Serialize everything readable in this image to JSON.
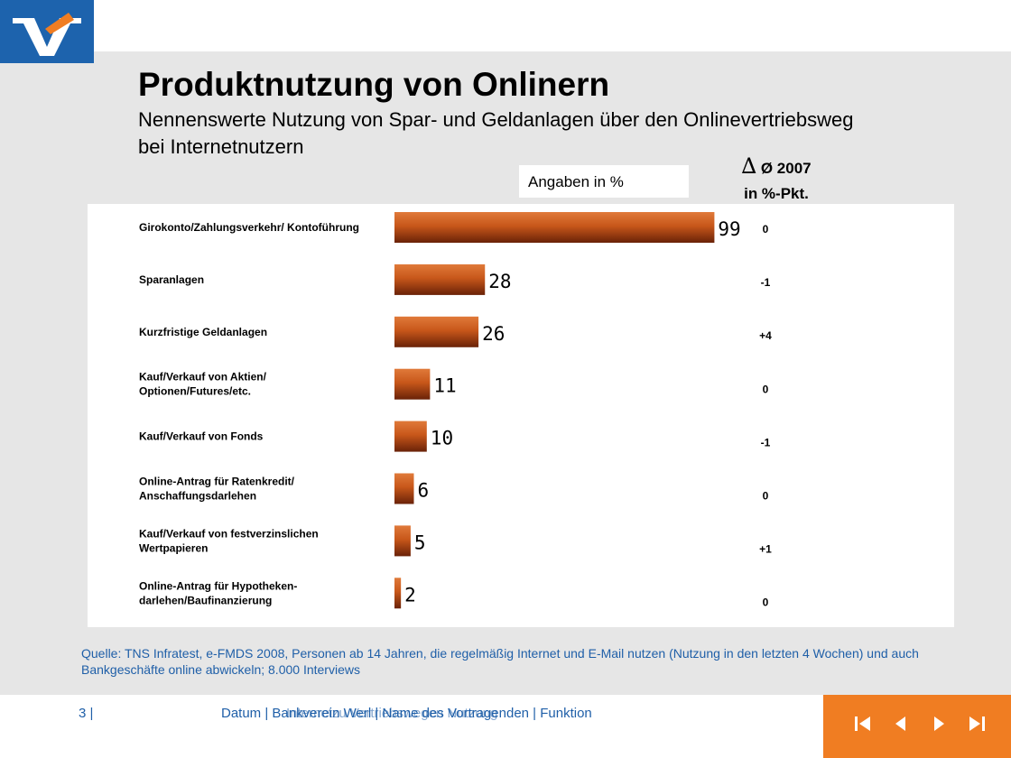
{
  "header": {
    "title": "Produktnutzung von Onlinern",
    "subtitle": "Nennenswerte Nutzung von Spar- und Geldanlagen über den Onlinevertriebsweg bei Internetnutzern"
  },
  "unit_label": "Angaben in %",
  "delta_header": {
    "symbol": "∆",
    "line1": "Ø 2007",
    "line2": "in %-Pkt."
  },
  "colors": {
    "brand_blue": "#1d63ad",
    "accent_orange": "#f07d22",
    "bar_orange": "#c8571a",
    "text_blue": "#1f5fa8"
  },
  "chart_data": {
    "type": "bar",
    "orientation": "horizontal",
    "title": "",
    "xlabel": "",
    "ylabel": "",
    "xlim": [
      0,
      100
    ],
    "grid": false,
    "categories": [
      [
        "Girokonto/Zahlungsverkehr/  Kontoführung"
      ],
      [
        "Sparanlagen"
      ],
      [
        "Kurzfristige  Geldanlagen"
      ],
      [
        "Kauf/Verkauf  von Aktien/",
        "Optionen/Futures/etc."
      ],
      [
        "Kauf/Verkauf  von Fonds"
      ],
      [
        "Online-Antrag  für Ratenkredit/",
        "Anschaffungsdarlehen"
      ],
      [
        "Kauf/Verkauf  von festverzinslichen",
        "Wertpapieren"
      ],
      [
        "Online-Antrag  für Hypotheken-",
        "darlehen/Baufinanzierung"
      ]
    ],
    "values": [
      99,
      28,
      26,
      11,
      10,
      6,
      5,
      2
    ],
    "data_labels": [
      "99",
      "28",
      "26",
      "11",
      "10",
      "6",
      "5",
      "2"
    ],
    "delta_values": [
      "0",
      "-1",
      "+4",
      "0",
      "-1",
      "0",
      "+1",
      "0"
    ]
  },
  "source": "Quelle: TNS Infratest, e-FMDS 2008, Personen ab 14 Jahren, die regelmäßig Internet und E-Mail nutzen (Nutzung in den letzten 4 Wochen) und auch Bankgeschäfte online abwickeln; 8.000 Interviews",
  "footer": {
    "page": "3 |",
    "text": "Datum | Bankverein Werl | Name des Vortragenden | Funktion",
    "overlay_text": "Internetzu Vertriebswegen Nutzung"
  },
  "nav": {
    "first_icon": "skip-first-icon",
    "prev_icon": "previous-icon",
    "next_icon": "next-icon",
    "last_icon": "skip-last-icon"
  }
}
